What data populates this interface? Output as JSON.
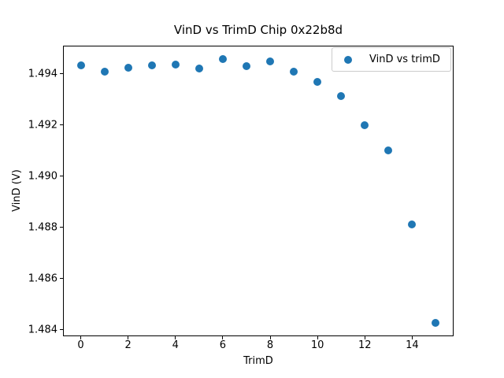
{
  "chart_data": {
    "type": "scatter",
    "title": "VinD vs TrimD Chip 0x22b8d",
    "xlabel": "TrimD",
    "ylabel": "VinD (V)",
    "legend": [
      "VinD vs trimD"
    ],
    "legend_position": "upper right",
    "marker_color": "#1f77b4",
    "grid": false,
    "x": [
      0,
      1,
      2,
      3,
      4,
      5,
      6,
      7,
      8,
      9,
      10,
      11,
      12,
      13,
      14,
      15
    ],
    "y": [
      1.49435,
      1.49408,
      1.49424,
      1.49435,
      1.49436,
      1.49422,
      1.49458,
      1.49432,
      1.4945,
      1.4941,
      1.4937,
      1.49312,
      1.492,
      1.49101,
      1.4881,
      1.48425
    ],
    "xlim": [
      -0.75,
      15.75
    ],
    "ylim": [
      1.483732,
      1.495118
    ],
    "xticks": [
      0,
      2,
      4,
      6,
      8,
      10,
      12,
      14
    ],
    "yticks": [
      1.484,
      1.486,
      1.488,
      1.49,
      1.492,
      1.494
    ],
    "ytick_decimals": 3
  }
}
